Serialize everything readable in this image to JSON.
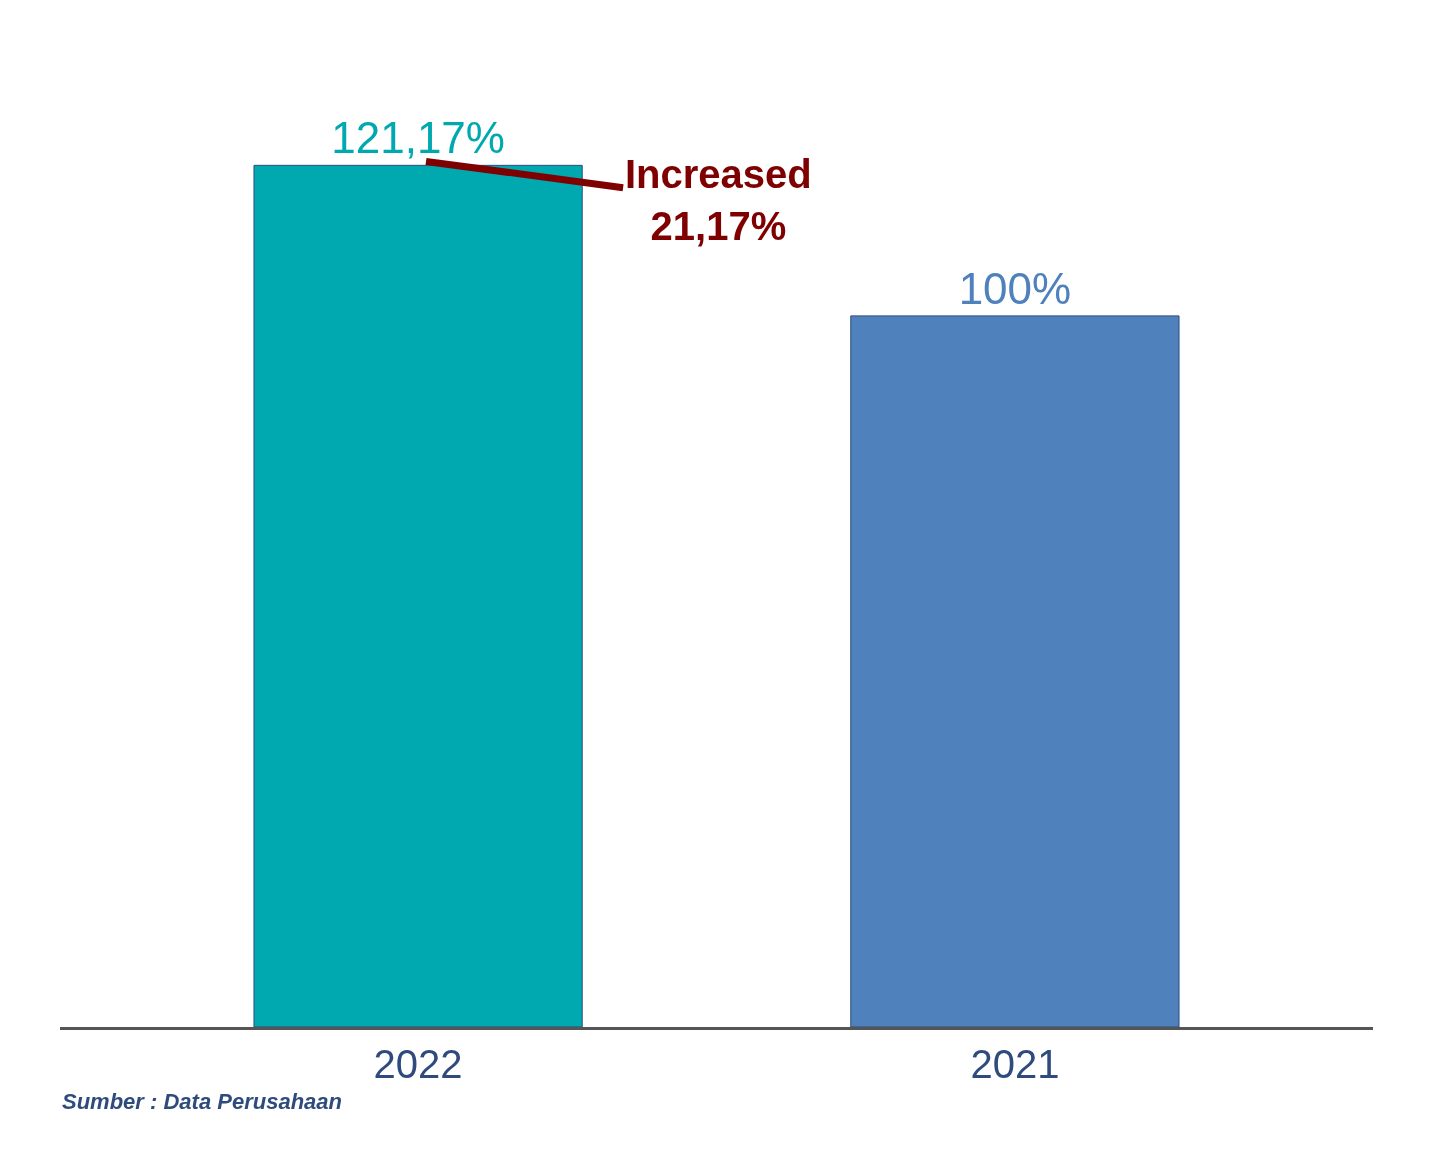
{
  "chart_data": {
    "type": "bar",
    "categories": [
      "2022",
      "2021"
    ],
    "values": [
      121.17,
      100
    ],
    "colors": [
      "#00a8b0",
      "#4f81bd"
    ],
    "value_labels": [
      "121,17%",
      "100%"
    ],
    "annotations": [
      {
        "text": "Increased\n21,17%",
        "x": "2022",
        "y": 121.17
      },
      "Sumber : Data Perusahaan"
    ]
  }
}
